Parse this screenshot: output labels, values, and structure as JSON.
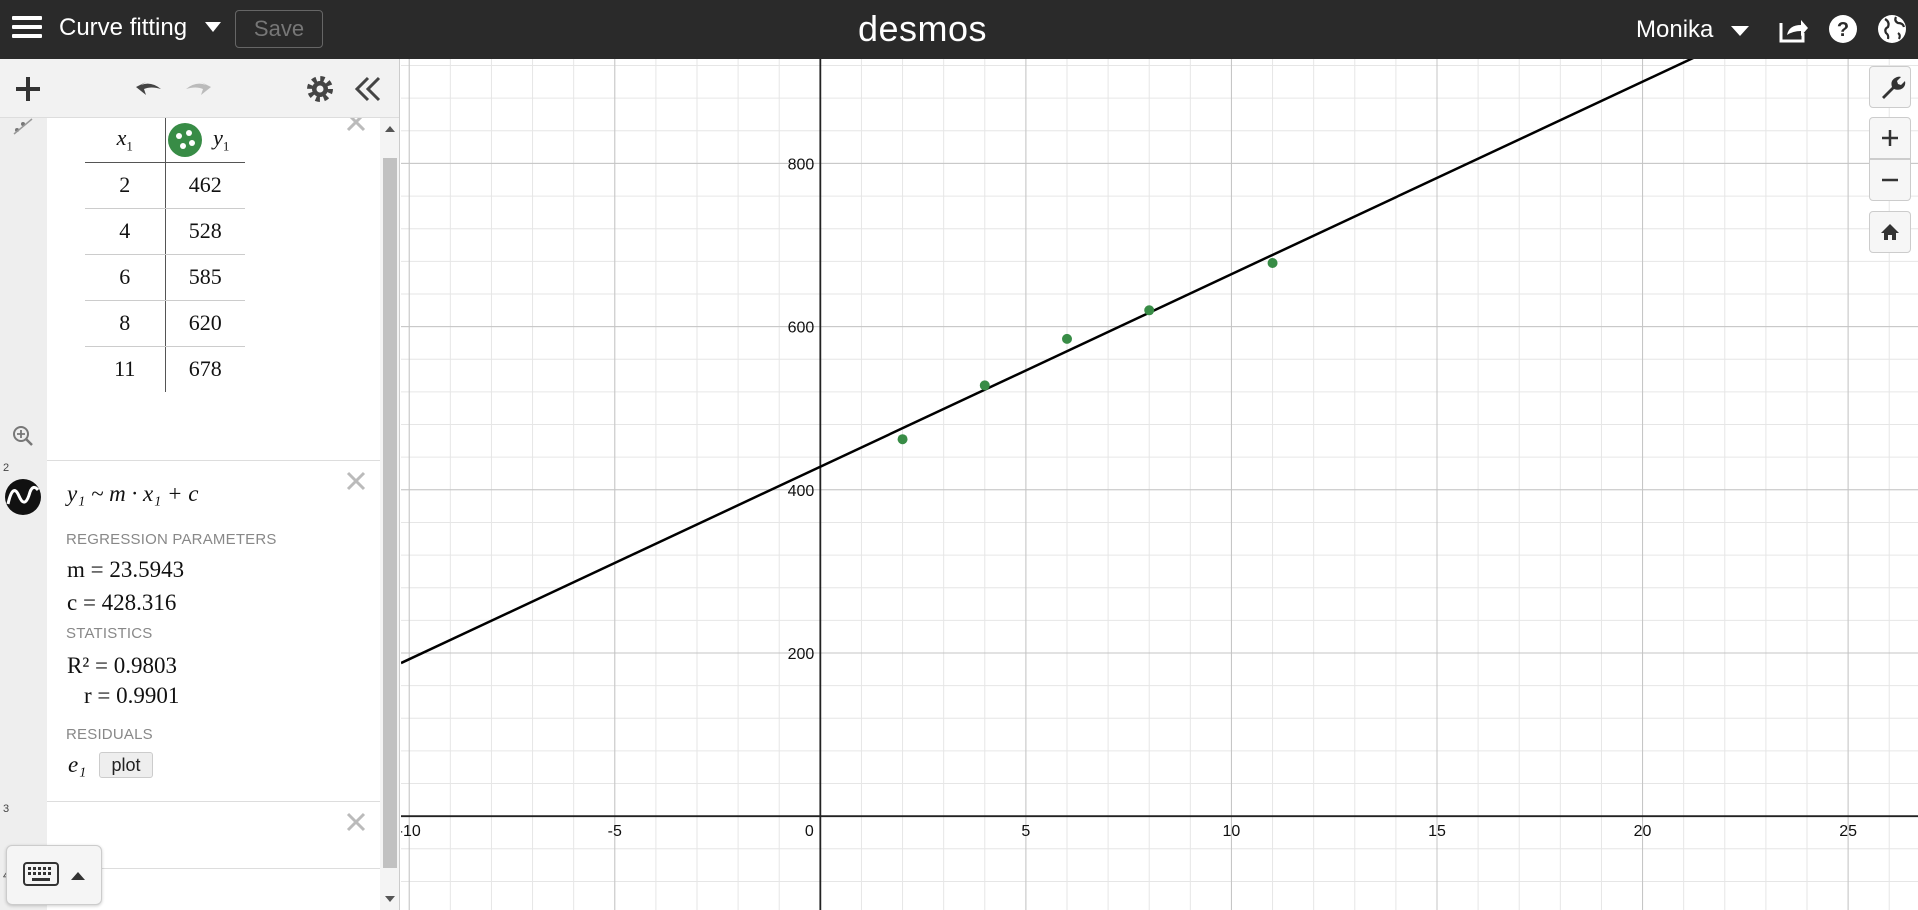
{
  "header": {
    "title": "Curve fitting",
    "save_label": "Save",
    "logo": "desmos",
    "user_name": "Monika",
    "icons": [
      "hamburger-icon",
      "share-icon",
      "help-icon",
      "globe-icon"
    ]
  },
  "toolbar": {
    "icons": [
      "plus-icon",
      "undo-icon",
      "redo-icon",
      "gear-icon",
      "collapse-icon"
    ]
  },
  "expressions": {
    "row1": {
      "table": {
        "col_x": "x",
        "col_x_sub": "1",
        "col_y": "y",
        "col_y_sub": "1",
        "rows": [
          {
            "x": "2",
            "y": "462"
          },
          {
            "x": "4",
            "y": "528"
          },
          {
            "x": "6",
            "y": "585"
          },
          {
            "x": "8",
            "y": "620"
          },
          {
            "x": "11",
            "y": "678"
          }
        ]
      }
    },
    "row2": {
      "num": "2",
      "regression": "y₁ ~ m · x₁ + c",
      "params_label": "REGRESSION PARAMETERS",
      "m_line": "m = 23.5943",
      "c_line": "c = 428.316",
      "stats_label": "STATISTICS",
      "r2_line": "R² = 0.9803",
      "r_line": "r = 0.9901",
      "residuals_label": "RESIDUALS",
      "residual_var": "e₁",
      "plot_label": "plot"
    },
    "row3": {
      "num": "3"
    },
    "row4": {
      "num": "4"
    }
  },
  "colors": {
    "header_bg": "#2a2a2a",
    "point_color": "#388c46",
    "line_color": "#000000"
  },
  "chart_data": {
    "type": "scatter",
    "points": [
      {
        "x": 2,
        "y": 462
      },
      {
        "x": 4,
        "y": 528
      },
      {
        "x": 6,
        "y": 585
      },
      {
        "x": 8,
        "y": 620
      },
      {
        "x": 11,
        "y": 678
      }
    ],
    "fit_line": {
      "m": 23.5943,
      "c": 428.316
    },
    "x_ticks": [
      -10,
      -5,
      0,
      5,
      10,
      15,
      20,
      25
    ],
    "y_ticks": [
      200,
      400,
      600,
      800
    ],
    "xlim": [
      -10.2,
      26.7
    ],
    "ylim": [
      -115,
      928
    ],
    "grid": true
  }
}
